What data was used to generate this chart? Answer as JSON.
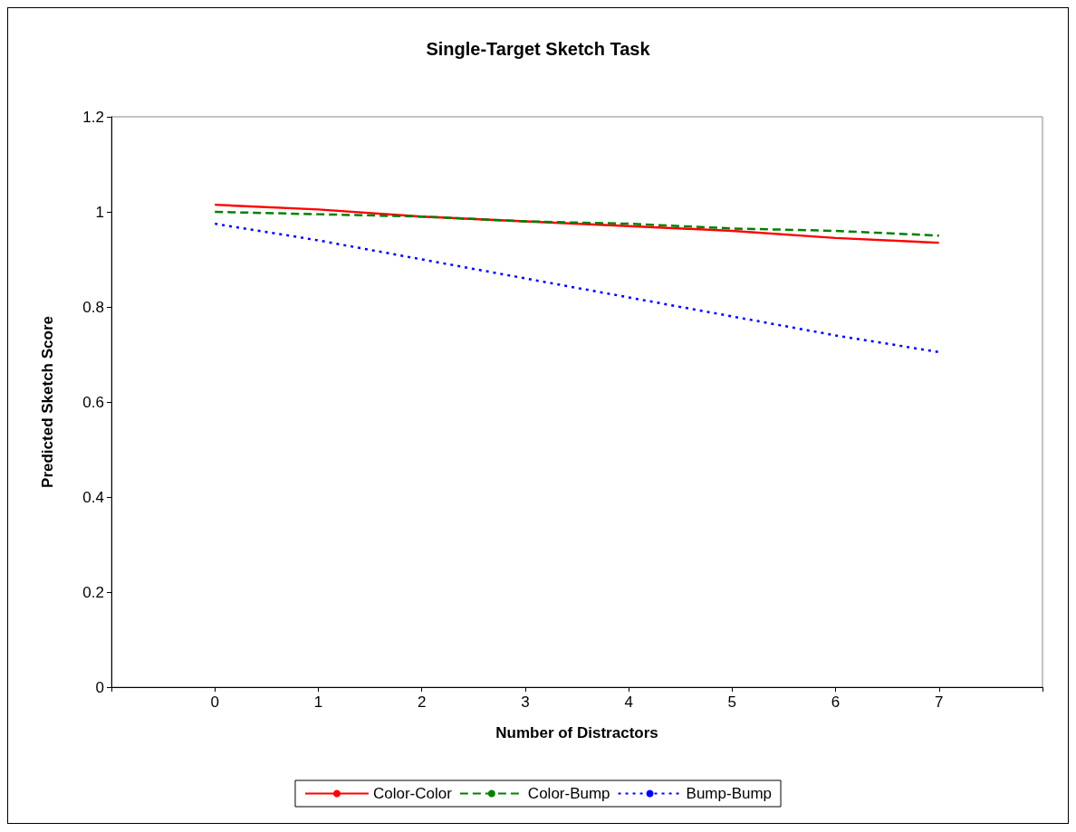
{
  "chart_data": {
    "type": "line",
    "title": "Single-Target Sketch Task",
    "xlabel": "Number of Distractors",
    "ylabel": "Predicted Sketch Score",
    "x": [
      0,
      1,
      2,
      3,
      4,
      5,
      6,
      7
    ],
    "series": [
      {
        "name": "Color-Color",
        "color": "#ff0000",
        "line_style": "solid",
        "values": [
          1.015,
          1.005,
          0.99,
          0.98,
          0.97,
          0.96,
          0.945,
          0.935
        ]
      },
      {
        "name": "Color-Bump",
        "color": "#008000",
        "line_style": "dashed",
        "values": [
          1.0,
          0.995,
          0.99,
          0.98,
          0.975,
          0.965,
          0.96,
          0.95
        ]
      },
      {
        "name": "Bump-Bump",
        "color": "#0000ff",
        "line_style": "dotted",
        "values": [
          0.975,
          0.94,
          0.9,
          0.86,
          0.82,
          0.78,
          0.74,
          0.705
        ]
      }
    ],
    "xlim": [
      -1,
      8
    ],
    "xticks": [
      {
        "value": -1,
        "label": null
      },
      0,
      1,
      2,
      3,
      4,
      5,
      6,
      7,
      {
        "value": 8,
        "label": null
      }
    ],
    "ylim": [
      0,
      1.2
    ],
    "yticks": [
      0,
      0.2,
      0.4,
      0.6,
      0.8,
      1,
      1.2
    ],
    "grid": false,
    "legend": "bottom",
    "marker": "none"
  }
}
